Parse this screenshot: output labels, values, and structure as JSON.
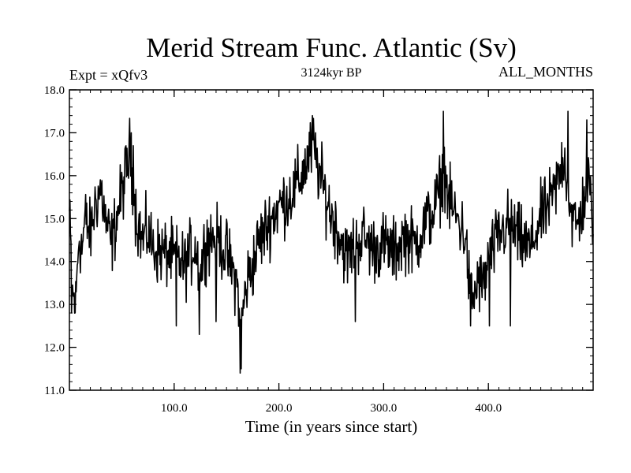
{
  "chart_data": {
    "type": "line",
    "title": "Merid Stream Func. Atlantic (Sv)",
    "subtitle_left": "Expt = xQfv3",
    "subtitle_center": "3124kyr BP",
    "subtitle_right": "ALL_MONTHS",
    "xlabel": "Time (in years since start)",
    "ylabel": "",
    "xlim": [
      0,
      500
    ],
    "ylim": [
      11.0,
      18.0
    ],
    "x_ticks": [
      100,
      200,
      300,
      400
    ],
    "x_tick_labels": [
      "100.0",
      "200.0",
      "300.0",
      "400.0"
    ],
    "y_ticks": [
      11,
      12,
      13,
      14,
      15,
      16,
      17,
      18
    ],
    "y_tick_labels": [
      "11.0",
      "12.0",
      "13.0",
      "14.0",
      "15.0",
      "16.0",
      "17.0",
      "18.0"
    ],
    "series": [
      {
        "name": "xQfv3",
        "anchors": [
          [
            0,
            15.1
          ],
          [
            3,
            13.2
          ],
          [
            6,
            13.0
          ],
          [
            9,
            14.6
          ],
          [
            12,
            14.3
          ],
          [
            15,
            15.0
          ],
          [
            20,
            14.6
          ],
          [
            25,
            15.4
          ],
          [
            30,
            15.7
          ],
          [
            35,
            14.9
          ],
          [
            40,
            14.4
          ],
          [
            45,
            15.0
          ],
          [
            50,
            15.6
          ],
          [
            55,
            16.2
          ],
          [
            58,
            16.6
          ],
          [
            61,
            15.6
          ],
          [
            65,
            14.9
          ],
          [
            70,
            14.5
          ],
          [
            75,
            14.7
          ],
          [
            80,
            14.3
          ],
          [
            90,
            14.2
          ],
          [
            100,
            14.1
          ],
          [
            110,
            13.9
          ],
          [
            120,
            14.4
          ],
          [
            125,
            13.7
          ],
          [
            130,
            14.5
          ],
          [
            140,
            14.6
          ],
          [
            150,
            14.2
          ],
          [
            155,
            13.8
          ],
          [
            160,
            13.5
          ],
          [
            164,
            12.6
          ],
          [
            170,
            13.6
          ],
          [
            175,
            13.9
          ],
          [
            180,
            14.4
          ],
          [
            190,
            14.9
          ],
          [
            200,
            15.3
          ],
          [
            210,
            15.5
          ],
          [
            220,
            15.9
          ],
          [
            228,
            16.4
          ],
          [
            233,
            16.7
          ],
          [
            238,
            16.1
          ],
          [
            245,
            15.5
          ],
          [
            250,
            15.1
          ],
          [
            258,
            14.6
          ],
          [
            265,
            14.1
          ],
          [
            270,
            14.3
          ],
          [
            280,
            14.6
          ],
          [
            290,
            14.3
          ],
          [
            300,
            14.4
          ],
          [
            310,
            14.2
          ],
          [
            320,
            14.6
          ],
          [
            330,
            14.4
          ],
          [
            340,
            14.9
          ],
          [
            348,
            15.2
          ],
          [
            355,
            15.8
          ],
          [
            358,
            16.2
          ],
          [
            362,
            15.4
          ],
          [
            370,
            15.0
          ],
          [
            378,
            14.6
          ],
          [
            382,
            13.4
          ],
          [
            386,
            13.1
          ],
          [
            390,
            13.6
          ],
          [
            395,
            13.4
          ],
          [
            400,
            14.0
          ],
          [
            410,
            14.6
          ],
          [
            420,
            14.9
          ],
          [
            430,
            14.5
          ],
          [
            440,
            14.3
          ],
          [
            450,
            15.0
          ],
          [
            460,
            15.4
          ],
          [
            468,
            16.0
          ],
          [
            472,
            16.5
          ],
          [
            476,
            15.7
          ],
          [
            480,
            15.0
          ],
          [
            485,
            14.8
          ],
          [
            490,
            15.3
          ],
          [
            495,
            15.9
          ],
          [
            500,
            15.0
          ]
        ],
        "spikes": [
          [
            2,
            12.8
          ],
          [
            59,
            17.0
          ],
          [
            61,
            16.7
          ],
          [
            102,
            12.5
          ],
          [
            124,
            12.3
          ],
          [
            140,
            12.6
          ],
          [
            163,
            11.4
          ],
          [
            164,
            11.5
          ],
          [
            232,
            17.4
          ],
          [
            235,
            17.0
          ],
          [
            273,
            12.6
          ],
          [
            357,
            17.5
          ],
          [
            383,
            12.5
          ],
          [
            401,
            12.5
          ],
          [
            421,
            12.5
          ],
          [
            476,
            17.5
          ],
          [
            494,
            17.3
          ]
        ],
        "noise_amplitude": 0.55,
        "samples_per_year": 2
      }
    ]
  }
}
